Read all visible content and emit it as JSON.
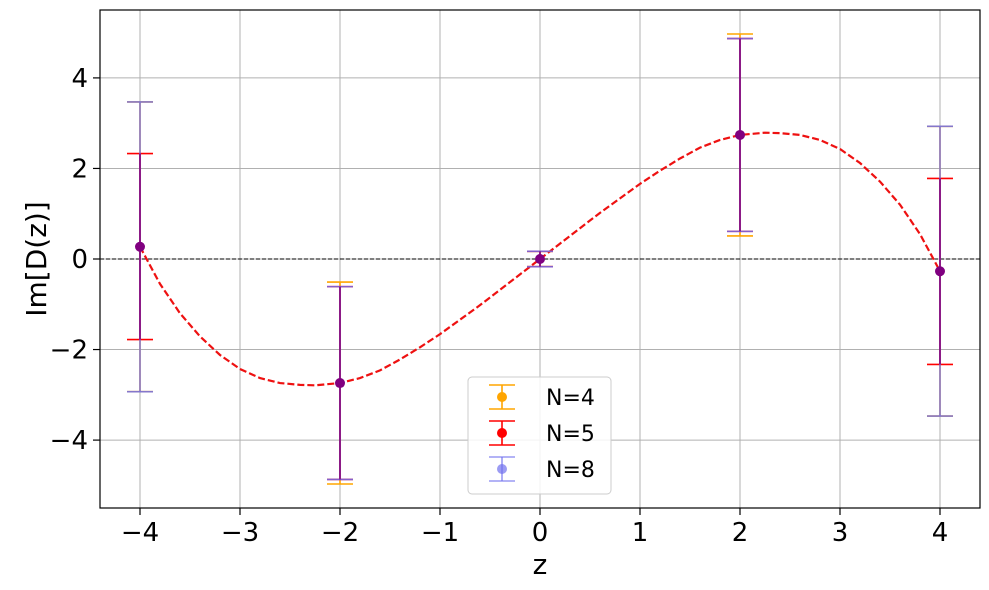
{
  "chart_data": {
    "type": "scatter",
    "xlabel": "z",
    "ylabel": "Im[D(z)]",
    "xlim": [
      -4.4,
      4.4
    ],
    "ylim": [
      -5.5,
      5.5
    ],
    "xticks": [
      -4,
      -3,
      -2,
      -1,
      0,
      1,
      2,
      3,
      4
    ],
    "yticks": [
      -4,
      -2,
      0,
      2,
      4
    ],
    "xtick_labels": [
      "−4",
      "−3",
      "−2",
      "−1",
      "0",
      "1",
      "2",
      "3",
      "4"
    ],
    "ytick_labels": [
      "−4",
      "−2",
      "0",
      "2",
      "4"
    ],
    "grid": true,
    "zero_line": 0,
    "legend_position": "lower-center",
    "series": [
      {
        "name": "N=4",
        "color": "#ffa500",
        "x": [
          -4,
          -2,
          0,
          2,
          4
        ],
        "y": [
          0.27,
          -2.74,
          0.0,
          2.74,
          -0.27
        ],
        "lower": [
          -2.93,
          -4.97,
          -0.17,
          0.51,
          -3.47
        ],
        "upper": [
          3.47,
          -0.51,
          0.17,
          4.97,
          2.93
        ]
      },
      {
        "name": "N=5",
        "color": "#ff0000",
        "x": [
          -4,
          -2,
          0,
          2,
          4
        ],
        "y": [
          0.27,
          -2.74,
          0.0,
          2.74,
          -0.27
        ],
        "lower": [
          -1.78,
          -4.87,
          -0.17,
          0.61,
          -2.33
        ],
        "upper": [
          2.33,
          -0.61,
          0.17,
          4.87,
          1.78
        ]
      },
      {
        "name": "N=8",
        "color": "#7070ee",
        "x": [
          -4,
          -2,
          0,
          2,
          4
        ],
        "y": [
          0.27,
          -2.74,
          0.0,
          2.74,
          -0.27
        ],
        "lower": [
          -2.93,
          -4.87,
          -0.17,
          0.61,
          -3.47
        ],
        "upper": [
          3.47,
          -0.61,
          0.17,
          4.87,
          2.93
        ]
      }
    ],
    "marker_color": "#800080",
    "curve": {
      "color": "#ee1111",
      "x": [
        -4,
        -3.8,
        -3.6,
        -3.4,
        -3.2,
        -3.0,
        -2.8,
        -2.6,
        -2.4,
        -2.25,
        -2.0,
        -1.8,
        -1.6,
        -1.4,
        -1.2,
        -1.0,
        -0.8,
        -0.6,
        -0.4,
        -0.2,
        0,
        0.2,
        0.4,
        0.6,
        0.8,
        1.0,
        1.2,
        1.4,
        1.6,
        1.8,
        2.0,
        2.25,
        2.4,
        2.6,
        2.8,
        3.0,
        3.2,
        3.4,
        3.6,
        3.8,
        4
      ],
      "y": [
        0.27,
        -0.55,
        -1.2,
        -1.71,
        -2.12,
        -2.43,
        -2.63,
        -2.74,
        -2.78,
        -2.79,
        -2.74,
        -2.63,
        -2.46,
        -2.22,
        -1.95,
        -1.66,
        -1.34,
        -1.02,
        -0.68,
        -0.34,
        0,
        0.34,
        0.68,
        1.02,
        1.34,
        1.66,
        1.95,
        2.22,
        2.46,
        2.63,
        2.74,
        2.79,
        2.78,
        2.74,
        2.63,
        2.43,
        2.12,
        1.71,
        1.2,
        0.55,
        -0.27
      ]
    }
  }
}
